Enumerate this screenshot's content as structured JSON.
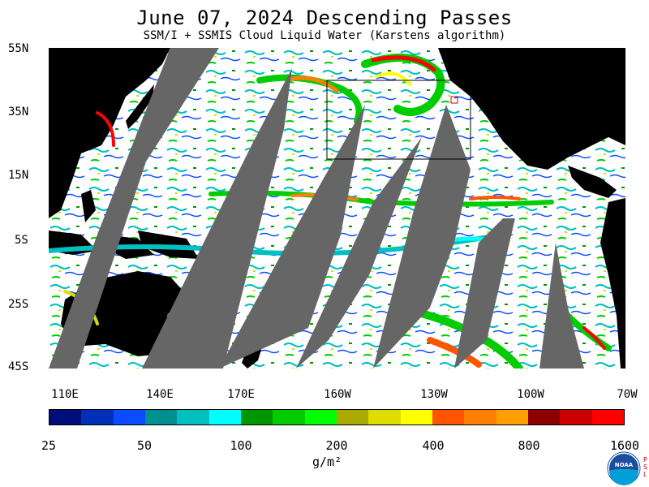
{
  "title": "June 07, 2024  Descending Passes",
  "subtitle": "SSM/I + SSMIS Cloud Liquid Water (Karstens algorithm)",
  "lat_labels": [
    "55N",
    "35N",
    "15N",
    "5S",
    "25S",
    "45S"
  ],
  "lon_labels": [
    "110E",
    "140E",
    "170E",
    "160W",
    "130W",
    "100W",
    "70W"
  ],
  "colorbar": {
    "colors": [
      "#000e7a",
      "#0030b8",
      "#0a4cff",
      "#009090",
      "#00c0c0",
      "#00ffff",
      "#009600",
      "#00cc00",
      "#00ff00",
      "#aaaa00",
      "#dddd00",
      "#ffff00",
      "#ff5500",
      "#ff7f00",
      "#ffa000",
      "#8b0000",
      "#cc0000",
      "#ff0000"
    ],
    "labels": [
      "25",
      "50",
      "100",
      "200",
      "400",
      "800",
      "1600"
    ]
  },
  "units": "g/m²",
  "logo": {
    "text": "NOAA",
    "side_text": "PSL"
  }
}
